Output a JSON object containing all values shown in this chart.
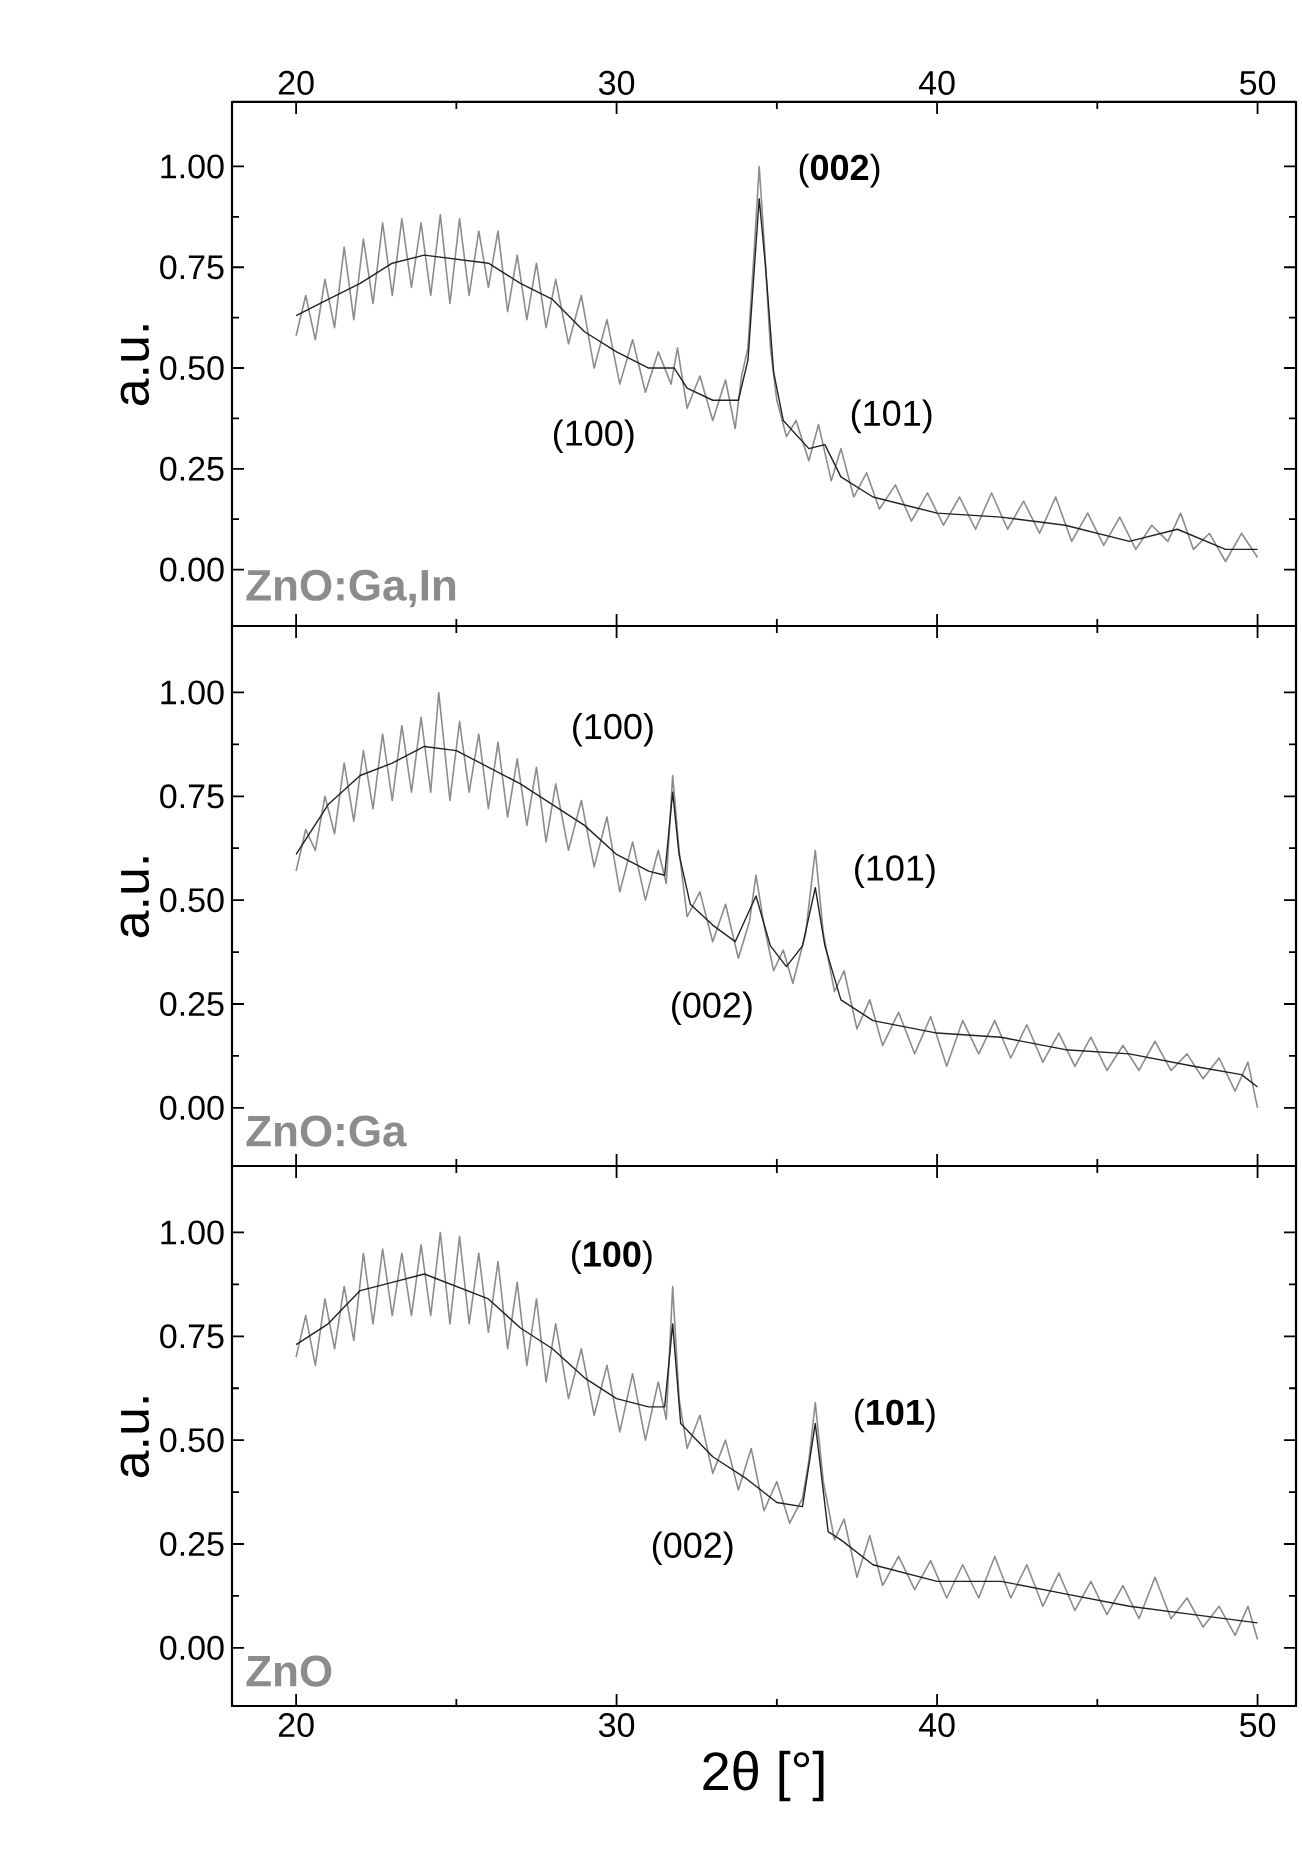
{
  "chart_data": [
    {
      "type": "line",
      "title": "ZnO:Ga,In",
      "ylabel": "a.u.",
      "xlim": [
        18,
        51.2
      ],
      "ylim": [
        -0.14,
        1.16
      ],
      "xticks": [
        20,
        30,
        40,
        50
      ],
      "x2lim": [
        18,
        51.2
      ],
      "x2ticks": [
        20,
        30,
        40,
        50
      ],
      "tick_labels": "y",
      "yticks": [
        {
          "value": 0,
          "label": "0.00"
        },
        {
          "value": 0.25,
          "label": "0.25"
        },
        {
          "value": 0.5,
          "label": "0.50"
        },
        {
          "value": 0.75,
          "label": "0.75"
        },
        {
          "value": 1,
          "label": "1.00"
        }
      ],
      "series": [
        {
          "color": "#8c8c8c",
          "x": [
            20,
            20.3,
            20.6,
            20.9,
            21.2,
            21.5,
            21.8,
            22.1,
            22.4,
            22.7,
            23,
            23.3,
            23.6,
            23.9,
            24.2,
            24.5,
            24.8,
            25.1,
            25.4,
            25.7,
            26,
            26.3,
            26.6,
            26.9,
            27.2,
            27.5,
            27.8,
            28.1,
            28.5,
            28.9,
            29.3,
            29.7,
            30.1,
            30.5,
            30.9,
            31.3,
            31.7,
            31.9,
            32.2,
            32.6,
            33,
            33.4,
            33.7,
            33.9,
            34.1,
            34.3,
            34.45,
            34.6,
            34.8,
            35,
            35.3,
            35.6,
            36,
            36.3,
            36.7,
            37,
            37.4,
            37.8,
            38.2,
            38.7,
            39.2,
            39.7,
            40.2,
            40.7,
            41.2,
            41.7,
            42.2,
            42.7,
            43.2,
            43.7,
            44.2,
            44.7,
            45.2,
            45.7,
            46.2,
            46.7,
            47.2,
            47.6,
            48,
            48.5,
            49,
            49.5,
            50
          ],
          "values": [
            0.58,
            0.68,
            0.57,
            0.72,
            0.6,
            0.8,
            0.62,
            0.82,
            0.66,
            0.86,
            0.68,
            0.87,
            0.7,
            0.86,
            0.68,
            0.88,
            0.66,
            0.87,
            0.68,
            0.84,
            0.7,
            0.84,
            0.64,
            0.78,
            0.62,
            0.76,
            0.6,
            0.72,
            0.56,
            0.68,
            0.5,
            0.62,
            0.46,
            0.57,
            0.44,
            0.54,
            0.46,
            0.55,
            0.4,
            0.48,
            0.37,
            0.47,
            0.35,
            0.48,
            0.55,
            0.8,
            1.0,
            0.82,
            0.55,
            0.42,
            0.33,
            0.37,
            0.27,
            0.36,
            0.22,
            0.3,
            0.18,
            0.24,
            0.15,
            0.21,
            0.12,
            0.19,
            0.11,
            0.18,
            0.1,
            0.19,
            0.1,
            0.17,
            0.09,
            0.18,
            0.07,
            0.14,
            0.06,
            0.13,
            0.05,
            0.11,
            0.07,
            0.14,
            0.05,
            0.09,
            0.02,
            0.09,
            0.03
          ]
        },
        {
          "color": "#222222",
          "x": [
            20,
            21,
            22,
            23,
            24,
            25,
            26,
            27,
            28,
            29,
            30,
            31,
            31.8,
            32.2,
            33,
            33.8,
            34.1,
            34.3,
            34.45,
            34.65,
            34.9,
            35.2,
            36,
            36.5,
            37,
            38,
            40,
            42,
            44,
            46,
            47.5,
            49,
            50
          ],
          "values": [
            0.63,
            0.67,
            0.71,
            0.76,
            0.78,
            0.77,
            0.76,
            0.71,
            0.67,
            0.59,
            0.54,
            0.5,
            0.5,
            0.45,
            0.42,
            0.42,
            0.52,
            0.75,
            0.92,
            0.75,
            0.49,
            0.37,
            0.3,
            0.31,
            0.23,
            0.18,
            0.14,
            0.13,
            0.11,
            0.07,
            0.1,
            0.05,
            0.05
          ]
        }
      ],
      "annotations": [
        "(**002**)",
        "(100)",
        "(101)"
      ]
    },
    {
      "type": "line",
      "title": "ZnO:Ga",
      "ylabel": "a.u.",
      "xlim": [
        18,
        51.2
      ],
      "ylim": [
        -0.14,
        1.16
      ],
      "xticks": [
        20,
        30,
        40,
        50
      ],
      "tick_labels": "y",
      "yticks": [
        {
          "value": 0,
          "label": "0.00"
        },
        {
          "value": 0.25,
          "label": "0.25"
        },
        {
          "value": 0.5,
          "label": "0.50"
        },
        {
          "value": 0.75,
          "label": "0.75"
        },
        {
          "value": 1,
          "label": "1.00"
        }
      ],
      "series": [
        {
          "color": "#8c8c8c",
          "x": [
            20,
            20.3,
            20.6,
            20.9,
            21.2,
            21.5,
            21.8,
            22.1,
            22.4,
            22.7,
            23,
            23.3,
            23.6,
            23.9,
            24.2,
            24.45,
            24.8,
            25.1,
            25.4,
            25.7,
            26,
            26.3,
            26.6,
            26.9,
            27.2,
            27.5,
            27.8,
            28.1,
            28.5,
            28.9,
            29.3,
            29.7,
            30.1,
            30.5,
            30.9,
            31.3,
            31.55,
            31.75,
            31.95,
            32.2,
            32.6,
            33,
            33.4,
            33.8,
            34.15,
            34.35,
            34.6,
            34.9,
            35.2,
            35.5,
            35.9,
            36.2,
            36.45,
            36.8,
            37.1,
            37.5,
            37.9,
            38.3,
            38.8,
            39.3,
            39.8,
            40.3,
            40.8,
            41.3,
            41.8,
            42.3,
            42.8,
            43.3,
            43.8,
            44.3,
            44.8,
            45.3,
            45.8,
            46.3,
            46.8,
            47.3,
            47.8,
            48.3,
            48.8,
            49.3,
            49.7,
            50
          ],
          "values": [
            0.57,
            0.67,
            0.62,
            0.75,
            0.66,
            0.83,
            0.69,
            0.86,
            0.72,
            0.9,
            0.74,
            0.92,
            0.76,
            0.94,
            0.76,
            1.0,
            0.74,
            0.93,
            0.76,
            0.9,
            0.72,
            0.88,
            0.7,
            0.84,
            0.68,
            0.82,
            0.64,
            0.78,
            0.62,
            0.74,
            0.58,
            0.7,
            0.52,
            0.64,
            0.5,
            0.62,
            0.54,
            0.8,
            0.62,
            0.46,
            0.52,
            0.4,
            0.49,
            0.36,
            0.45,
            0.56,
            0.44,
            0.33,
            0.38,
            0.3,
            0.42,
            0.62,
            0.42,
            0.28,
            0.33,
            0.19,
            0.26,
            0.15,
            0.23,
            0.13,
            0.22,
            0.1,
            0.21,
            0.13,
            0.21,
            0.12,
            0.2,
            0.11,
            0.18,
            0.1,
            0.17,
            0.09,
            0.15,
            0.09,
            0.16,
            0.09,
            0.13,
            0.07,
            0.12,
            0.04,
            0.11,
            0.0
          ]
        },
        {
          "color": "#222222",
          "x": [
            20,
            21,
            22,
            23,
            24,
            25,
            26,
            27,
            28,
            29,
            30,
            31,
            31.5,
            31.75,
            31.95,
            32.3,
            33,
            33.7,
            34.35,
            34.8,
            35.3,
            35.8,
            36.2,
            36.5,
            37,
            38,
            40,
            42,
            44,
            46,
            48,
            49.5,
            50
          ],
          "values": [
            0.61,
            0.73,
            0.8,
            0.83,
            0.87,
            0.86,
            0.82,
            0.78,
            0.73,
            0.68,
            0.61,
            0.57,
            0.56,
            0.76,
            0.61,
            0.49,
            0.44,
            0.4,
            0.51,
            0.39,
            0.34,
            0.39,
            0.53,
            0.39,
            0.26,
            0.21,
            0.18,
            0.17,
            0.14,
            0.13,
            0.1,
            0.08,
            0.05
          ]
        }
      ],
      "annotations": [
        "(100)",
        "(002)",
        "(101)"
      ]
    },
    {
      "type": "line",
      "title": "ZnO",
      "ylabel": "a.u.",
      "xlabel": "2θ [°]",
      "xlim": [
        18,
        51.2
      ],
      "ylim": [
        -0.14,
        1.16
      ],
      "xticks": [
        20,
        30,
        40,
        50
      ],
      "yticks": [
        {
          "value": 0,
          "label": "0.00"
        },
        {
          "value": 0.25,
          "label": "0.25"
        },
        {
          "value": 0.5,
          "label": "0.50"
        },
        {
          "value": 0.75,
          "label": "0.75"
        },
        {
          "value": 1,
          "label": "1.00"
        }
      ],
      "series": [
        {
          "color": "#8c8c8c",
          "x": [
            20,
            20.3,
            20.6,
            20.9,
            21.2,
            21.5,
            21.8,
            22.1,
            22.4,
            22.7,
            23,
            23.3,
            23.6,
            23.9,
            24.2,
            24.5,
            24.8,
            25.1,
            25.4,
            25.7,
            26,
            26.3,
            26.6,
            26.9,
            27.2,
            27.5,
            27.8,
            28.1,
            28.5,
            28.9,
            29.3,
            29.7,
            30.1,
            30.5,
            30.9,
            31.3,
            31.55,
            31.75,
            31.95,
            32.2,
            32.6,
            33,
            33.4,
            33.8,
            34.2,
            34.6,
            35,
            35.4,
            35.8,
            36,
            36.2,
            36.45,
            36.8,
            37.1,
            37.5,
            37.9,
            38.3,
            38.8,
            39.3,
            39.8,
            40.3,
            40.8,
            41.3,
            41.8,
            42.3,
            42.8,
            43.3,
            43.8,
            44.3,
            44.8,
            45.3,
            45.8,
            46.3,
            46.8,
            47.3,
            47.8,
            48.3,
            48.8,
            49.3,
            49.7,
            50
          ],
          "values": [
            0.7,
            0.8,
            0.68,
            0.84,
            0.72,
            0.87,
            0.74,
            0.95,
            0.78,
            0.96,
            0.8,
            0.95,
            0.8,
            0.97,
            0.8,
            1.0,
            0.78,
            0.99,
            0.78,
            0.95,
            0.76,
            0.93,
            0.72,
            0.88,
            0.68,
            0.84,
            0.64,
            0.78,
            0.6,
            0.72,
            0.56,
            0.68,
            0.52,
            0.66,
            0.5,
            0.64,
            0.55,
            0.87,
            0.6,
            0.48,
            0.56,
            0.42,
            0.5,
            0.38,
            0.48,
            0.33,
            0.4,
            0.3,
            0.36,
            0.45,
            0.59,
            0.4,
            0.26,
            0.31,
            0.17,
            0.27,
            0.15,
            0.22,
            0.14,
            0.21,
            0.12,
            0.2,
            0.12,
            0.22,
            0.12,
            0.2,
            0.1,
            0.18,
            0.09,
            0.16,
            0.08,
            0.15,
            0.07,
            0.17,
            0.07,
            0.12,
            0.05,
            0.1,
            0.03,
            0.1,
            0.02
          ]
        },
        {
          "color": "#222222",
          "x": [
            20,
            21,
            22,
            23,
            24,
            25,
            26,
            27,
            28,
            29,
            30,
            31,
            31.5,
            31.75,
            32,
            33,
            34,
            35,
            35.8,
            36.2,
            36.6,
            37,
            38,
            40,
            42,
            44,
            46,
            48,
            50
          ],
          "values": [
            0.73,
            0.78,
            0.86,
            0.88,
            0.9,
            0.87,
            0.84,
            0.77,
            0.72,
            0.65,
            0.6,
            0.58,
            0.58,
            0.78,
            0.54,
            0.46,
            0.41,
            0.35,
            0.34,
            0.54,
            0.28,
            0.26,
            0.2,
            0.16,
            0.16,
            0.13,
            0.1,
            0.08,
            0.06
          ]
        }
      ],
      "annotations": [
        "(**100**)",
        "(002)",
        "(**101**)"
      ]
    }
  ]
}
